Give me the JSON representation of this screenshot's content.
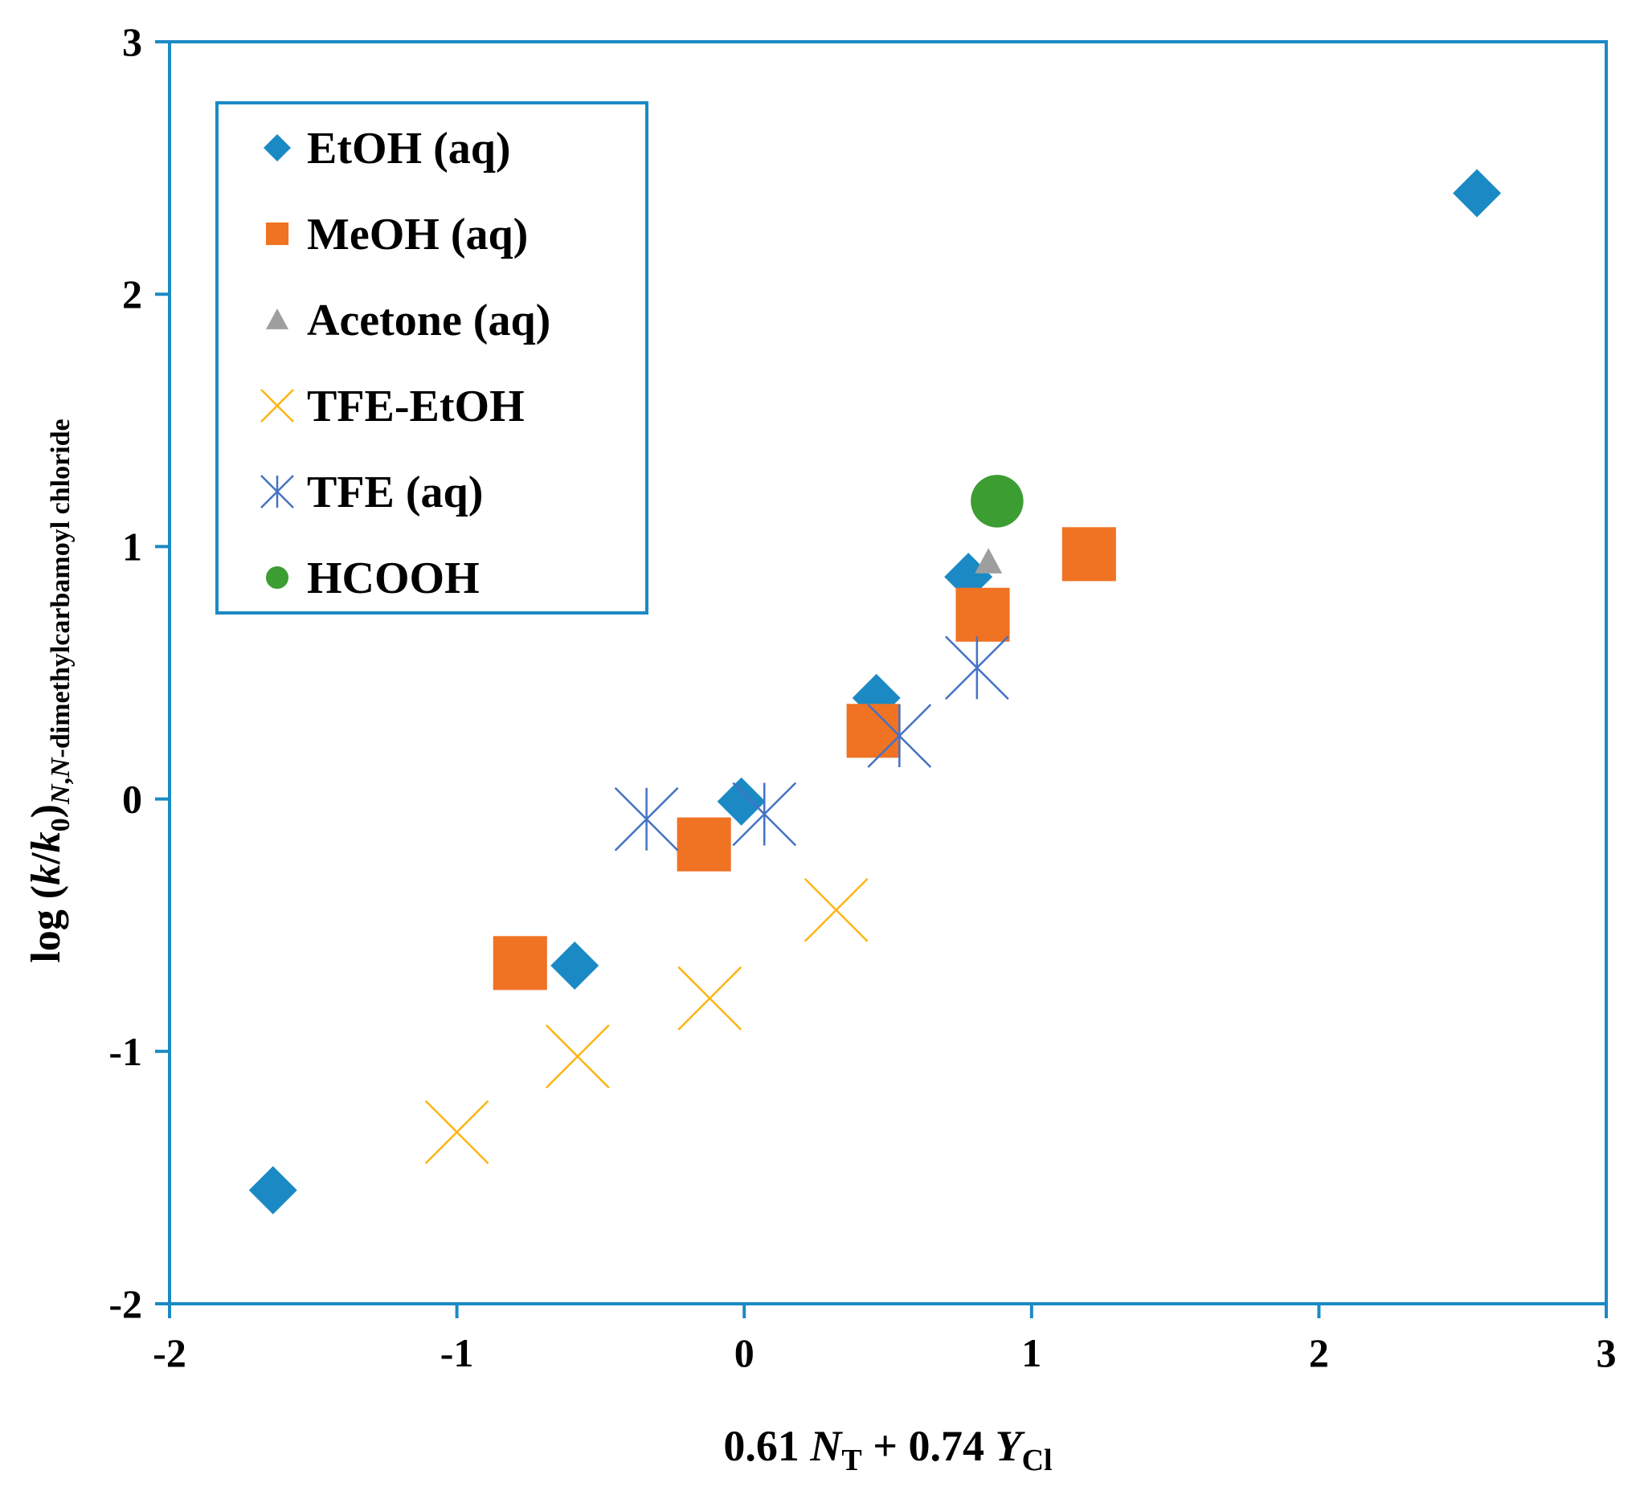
{
  "chart_data": {
    "type": "scatter",
    "title": "",
    "xlabel": {
      "parts": [
        {
          "text": "0.61 ",
          "italic": false,
          "sub": false
        },
        {
          "text": "N",
          "italic": true,
          "sub": false
        },
        {
          "text": "T",
          "italic": false,
          "sub": true
        },
        {
          "text": " + 0.74 ",
          "italic": false,
          "sub": false
        },
        {
          "text": "Y",
          "italic": true,
          "sub": false
        },
        {
          "text": "Cl",
          "italic": false,
          "sub": true
        }
      ]
    },
    "ylabel": {
      "parts": [
        {
          "text": "log (",
          "italic": false,
          "sub": false
        },
        {
          "text": "k",
          "italic": true,
          "sub": false
        },
        {
          "text": "/",
          "italic": false,
          "sub": false
        },
        {
          "text": "k",
          "italic": true,
          "sub": false
        },
        {
          "text": "0",
          "italic": false,
          "sub": true
        },
        {
          "text": ")",
          "italic": false,
          "sub": false
        },
        {
          "text": "N",
          "italic": true,
          "sub": true
        },
        {
          "text": ",",
          "italic": false,
          "sub": true
        },
        {
          "text": "N",
          "italic": true,
          "sub": true
        },
        {
          "text": "-dimethylcarbamoyl chloride",
          "italic": false,
          "sub": true
        }
      ]
    },
    "xlim": [
      -2,
      3
    ],
    "ylim": [
      -2,
      3
    ],
    "xticks": [
      -2,
      -1,
      0,
      1,
      2,
      3
    ],
    "yticks": [
      -2,
      -1,
      0,
      1,
      2,
      3
    ],
    "xtick_labels": [
      "-2",
      "-1",
      "0",
      "1",
      "2",
      "3"
    ],
    "ytick_labels": [
      "-2",
      "-1",
      "0",
      "1",
      "2",
      "3"
    ],
    "grid": false,
    "legend_position": "top-left",
    "series": [
      {
        "name": "EtOH (aq)",
        "marker": "diamond",
        "color": "#1B8AC4",
        "points": [
          [
            -1.64,
            -1.55
          ],
          [
            -0.59,
            -0.66
          ],
          [
            -0.01,
            -0.01
          ],
          [
            0.46,
            0.4
          ],
          [
            0.78,
            0.88
          ],
          [
            2.55,
            2.4
          ]
        ]
      },
      {
        "name": "MeOH (aq)",
        "marker": "square",
        "color": "#F07223",
        "points": [
          [
            -0.78,
            -0.65
          ],
          [
            -0.14,
            -0.18
          ],
          [
            0.45,
            0.27
          ],
          [
            0.83,
            0.73
          ],
          [
            1.2,
            0.97
          ]
        ]
      },
      {
        "name": "Acetone (aq)",
        "marker": "triangle",
        "color": "#9E9E9E",
        "points": [
          [
            0.85,
            0.94
          ]
        ]
      },
      {
        "name": "TFE-EtOH",
        "marker": "x",
        "color": "#FDB515",
        "points": [
          [
            -1.0,
            -1.32
          ],
          [
            -0.58,
            -1.02
          ],
          [
            -0.12,
            -0.79
          ],
          [
            0.32,
            -0.44
          ]
        ]
      },
      {
        "name": "TFE (aq)",
        "marker": "star",
        "color": "#4472C4",
        "points": [
          [
            -0.34,
            -0.08
          ],
          [
            0.07,
            -0.06
          ],
          [
            0.54,
            0.25
          ],
          [
            0.81,
            0.52
          ]
        ]
      },
      {
        "name": "HCOOH",
        "marker": "circle",
        "color": "#3C9D33",
        "points": [
          [
            0.88,
            1.18
          ]
        ]
      }
    ]
  },
  "colors": {
    "axis": "#1B8AC4",
    "legend_border": "#1B8AC4",
    "text": "#000000"
  }
}
